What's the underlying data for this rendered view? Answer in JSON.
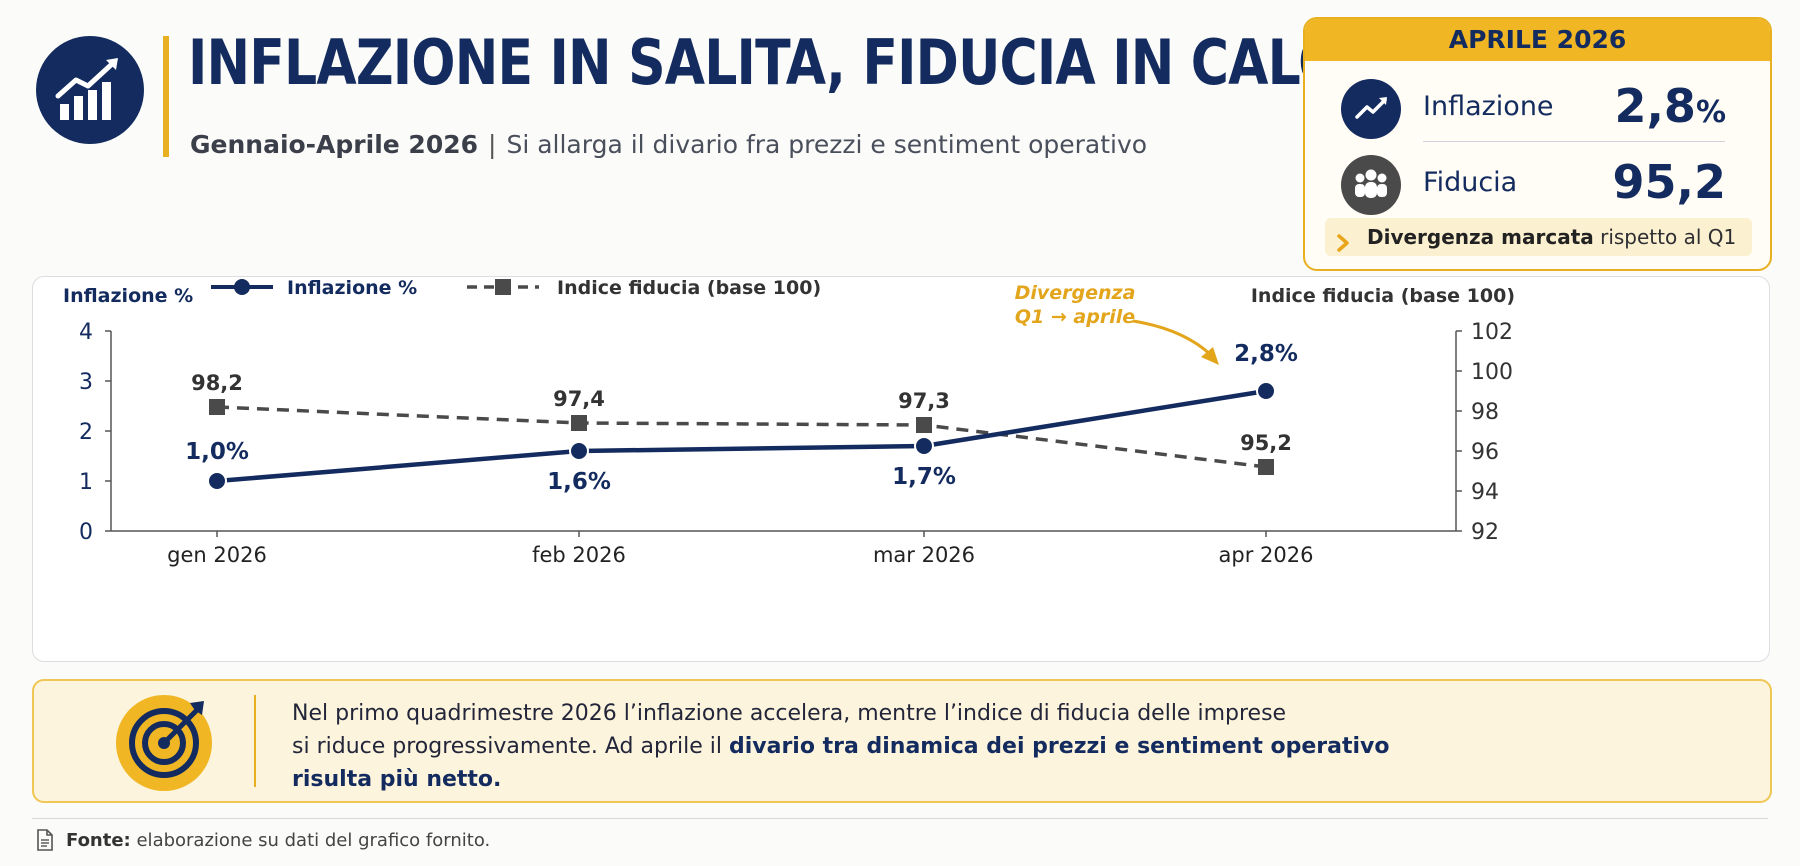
{
  "header": {
    "title": "INFLAZIONE IN SALITA, FIDUCIA IN CALO",
    "subtitle_strong": "Gennaio-Aprile 2026",
    "subtitle_separator": "|",
    "subtitle_rest": "Si allarga il divario fra prezzi e sentiment operativo",
    "icon": "chart-growth-icon"
  },
  "kpi": {
    "heading": "APRILE 2026",
    "inflation_label": "Inflazione",
    "inflation_value": "2,8",
    "inflation_unit": "%",
    "confidence_label": "Fiducia",
    "confidence_value": "95,2",
    "note_strong": "Divergenza marcata",
    "note_rest": " rispetto al Q1",
    "colors": {
      "accent": "#f0b623",
      "navy": "#132b5e",
      "grey": "#4a4a4a"
    }
  },
  "chart_data": {
    "type": "line",
    "categories": [
      "gen 2026",
      "feb 2026",
      "mar 2026",
      "apr 2026"
    ],
    "series": [
      {
        "name": "Inflazione %",
        "axis": "left",
        "style": "solid-circle",
        "color": "#132b5e",
        "values": [
          1.0,
          1.6,
          1.7,
          2.8
        ],
        "labels": [
          "1,0%",
          "1,6%",
          "1,7%",
          "2,8%"
        ]
      },
      {
        "name": "Indice fiducia (base 100)",
        "axis": "right",
        "style": "dashed-square",
        "color": "#4a4a4a",
        "values": [
          98.2,
          97.4,
          97.3,
          95.2
        ],
        "labels": [
          "98,2",
          "97,4",
          "97,3",
          "95,2"
        ]
      }
    ],
    "y_left": {
      "label": "Inflazione %",
      "range": [
        0,
        4
      ],
      "ticks": [
        0,
        1,
        2,
        3,
        4
      ]
    },
    "y_right": {
      "label": "Indice fiducia (base 100)",
      "range": [
        92,
        102
      ],
      "ticks": [
        92,
        94,
        96,
        98,
        100,
        102
      ]
    },
    "annotation": {
      "text_line1": "Divergenza",
      "text_line2": "Q1 → aprile",
      "color": "#e3a51c",
      "target": "apr 2026"
    },
    "legend": "top-left",
    "grid": false
  },
  "summary": {
    "line1": "Nel primo quadrimestre 2026 l’inflazione accelera, mentre l’indice di fiducia delle imprese",
    "line2_start": "si riduce progressivamente. Ad aprile il ",
    "line2_highlight": "divario tra dinamica dei prezzi e sentiment operativo",
    "line3_highlight": "risulta più netto."
  },
  "footer": {
    "label": "Fonte:",
    "text": " elaborazione su dati del grafico fornito."
  }
}
